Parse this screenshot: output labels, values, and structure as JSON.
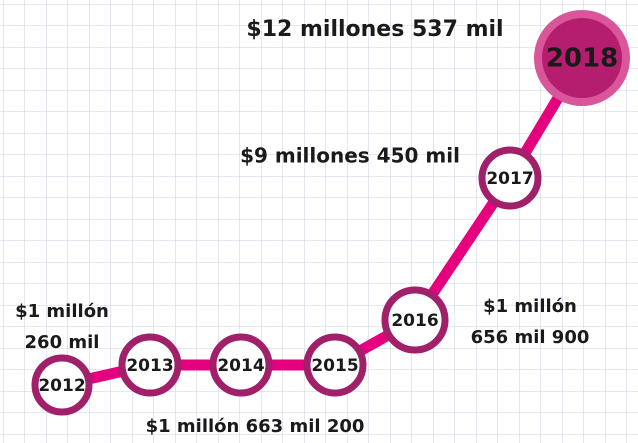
{
  "nodes": [
    {
      "label": "2012"
    },
    {
      "label": "2013"
    },
    {
      "label": "2014"
    },
    {
      "label": "2015"
    },
    {
      "label": "2016"
    },
    {
      "label": "2017"
    },
    {
      "label": "2018"
    }
  ],
  "annotations": [
    {
      "lines": [
        "$1 millón",
        "260 mil"
      ]
    },
    {
      "lines": [
        "$1 millón 663 mil 200"
      ]
    },
    {
      "lines": [
        "$1 millón",
        "656 mil 900"
      ]
    },
    {
      "lines": [
        "$9 millones 450 mil"
      ]
    },
    {
      "lines": [
        "$12 millones 537 mil"
      ]
    }
  ]
}
